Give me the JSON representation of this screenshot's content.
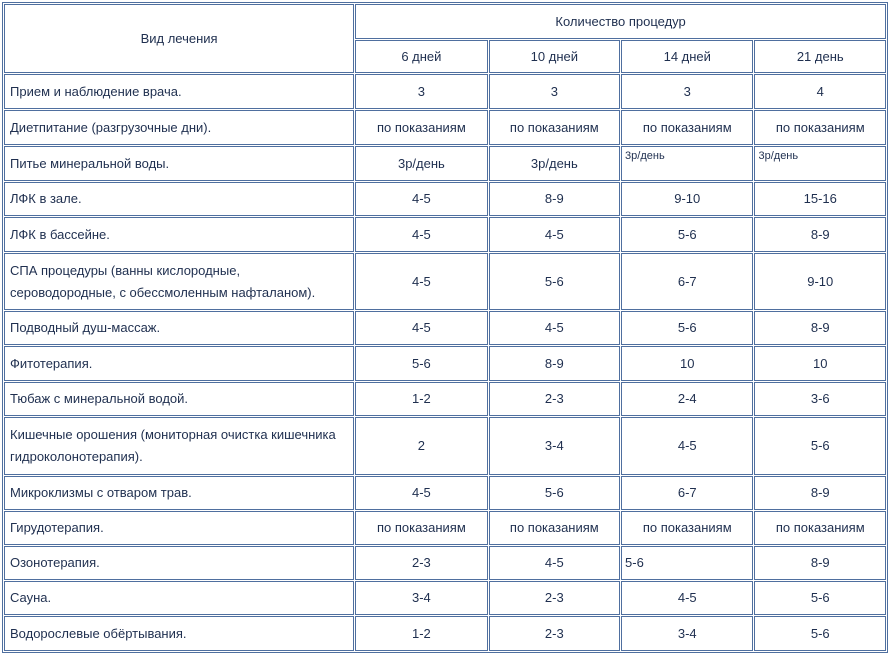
{
  "table": {
    "header": {
      "treatment": "Вид лечения",
      "group": "Количество процедур",
      "durations": [
        "6 дней",
        "10 дней",
        "14 дней",
        "21 день"
      ]
    },
    "rows": [
      [
        "Прием и наблюдение врача.",
        "3",
        "3",
        "3",
        "4"
      ],
      [
        "Диетпитание (разгрузочные дни).",
        "по показаниям",
        "по показаниям",
        "по показаниям",
        "по показаниям"
      ],
      [
        "Питье минеральной воды.",
        "3р/день",
        "3р/день",
        "3р/день",
        "3р/день"
      ],
      [
        "ЛФК в зале.",
        "4-5",
        "8-9",
        "9-10",
        "15-16"
      ],
      [
        "ЛФК в бассейне.",
        "4-5",
        "4-5",
        "5-6",
        "8-9"
      ],
      [
        "СПА процедуры (ванны кислородные, сероводородные, с обессмоленным нафталаном).",
        "4-5",
        "5-6",
        "6-7",
        "9-10"
      ],
      [
        "Подводный душ-массаж.",
        "4-5",
        "4-5",
        "5-6",
        "8-9"
      ],
      [
        "Фитотерапия.",
        "5-6",
        "8-9",
        "10",
        "10"
      ],
      [
        "Тюбаж с минеральной водой.",
        "1-2",
        "2-3",
        "2-4",
        "3-6"
      ],
      [
        "Кишечные орошения (мониторная очистка кишечника гидроколонотерапия).",
        "2",
        "3-4",
        "4-5",
        "5-6"
      ],
      [
        "Микроклизмы с отваром трав.",
        "4-5",
        "5-6",
        "6-7",
        "8-9"
      ],
      [
        "Гирудотерапия.",
        "по показаниям",
        "по показаниям",
        "по показаниям",
        "по показаниям"
      ],
      [
        "Озонотерапия.",
        "2-3",
        "4-5",
        "5-6",
        "8-9"
      ],
      [
        "Сауна.",
        "3-4",
        "2-3",
        "4-5",
        "5-6"
      ],
      [
        "Водорослевые обёртывания.",
        "1-2",
        "2-3",
        "3-4",
        "5-6"
      ]
    ]
  }
}
